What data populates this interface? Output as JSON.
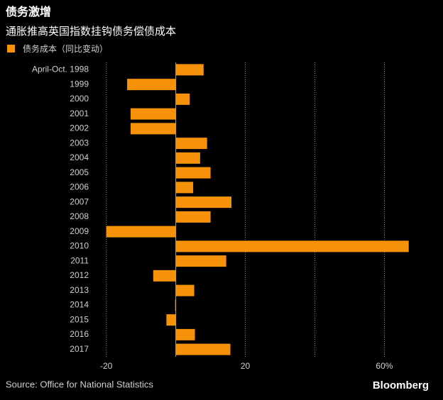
{
  "chart_data": {
    "type": "barh",
    "title": "债务激增",
    "subtitle": "通胀推高英国指数挂钩债务偿债成本",
    "source": "Source: Office for National Statistics",
    "brand": "Bloomberg",
    "categories": [
      "April-Oct. 1998",
      "1999",
      "2000",
      "2001",
      "2002",
      "2003",
      "2004",
      "2005",
      "2006",
      "2007",
      "2008",
      "2009",
      "2010",
      "2011",
      "2012",
      "2013",
      "2014",
      "2015",
      "2016",
      "2017"
    ],
    "series": [
      {
        "name": "债务成本（同比变动）",
        "color": "#f5920a",
        "values": [
          8,
          -14,
          4,
          -13,
          -13,
          9,
          7,
          10,
          5,
          16,
          10,
          -20,
          67,
          14.5,
          -6.5,
          5.3,
          -0.2,
          -2.7,
          5.5,
          15.7
        ]
      }
    ],
    "xlim": [
      -23,
      74
    ],
    "xticks": [
      -20,
      20,
      {
        "value": 40,
        "label": null
      },
      {
        "value": 60,
        "label": "60%"
      }
    ],
    "grid": true
  }
}
